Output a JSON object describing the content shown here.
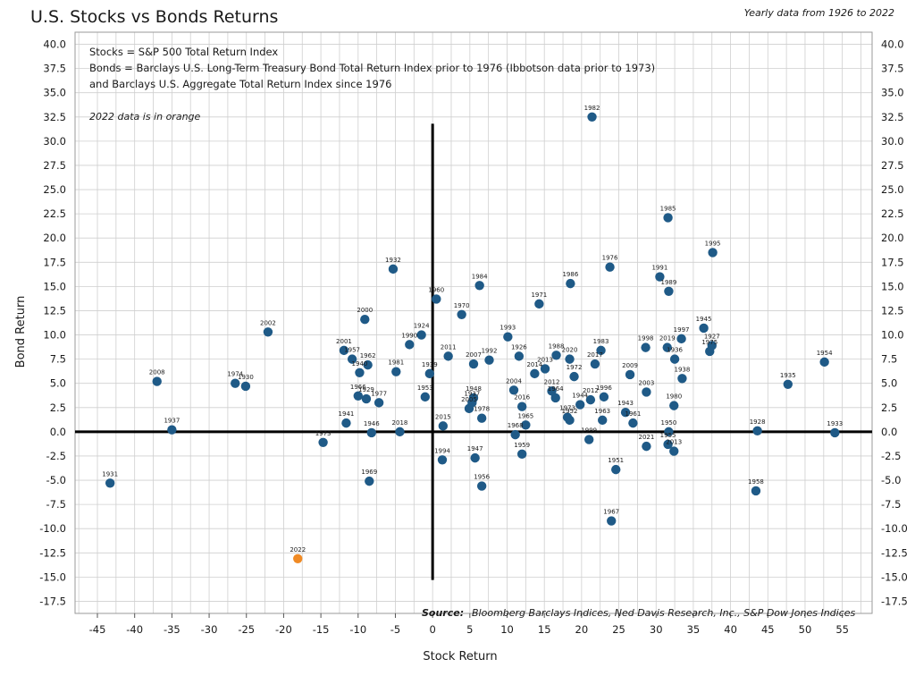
{
  "chart_data": {
    "type": "scatter",
    "title": "U.S. Stocks vs Bonds Returns",
    "subtitle": "Yearly data from 1926 to 2022",
    "xlabel": "Stock Return",
    "ylabel": "Bond Return",
    "xlim": [
      -48,
      59
    ],
    "ylim": [
      -18.75,
      41.25
    ],
    "xticks": [
      -45,
      -40,
      -35,
      -30,
      -25,
      -20,
      -15,
      -10,
      -5,
      0,
      5,
      10,
      15,
      20,
      25,
      30,
      35,
      40,
      45,
      50,
      55
    ],
    "xtick_labels": [
      "-45",
      "-40",
      "-35",
      "-30",
      "-25",
      "-20",
      "-15",
      "-10",
      "-5",
      "0",
      "5",
      "10",
      "15",
      "20",
      "25",
      "30",
      "35",
      "40",
      "45",
      "50",
      "55"
    ],
    "yticks": [
      -17.5,
      -15,
      -12.5,
      -10,
      -7.5,
      -5,
      -2.5,
      0,
      2.5,
      5,
      7.5,
      10,
      12.5,
      15,
      17.5,
      20,
      22.5,
      25,
      27.5,
      30,
      32.5,
      35,
      37.5,
      40
    ],
    "ytick_labels": [
      "-17.5",
      "-15.0",
      "-12.5",
      "-10.0",
      "-7.5",
      "-5.0",
      "-2.5",
      "0.0",
      "2.5",
      "5.0",
      "7.5",
      "10.0",
      "12.5",
      "15.0",
      "17.5",
      "20.0",
      "22.5",
      "25.0",
      "27.5",
      "30.0",
      "32.5",
      "35.0",
      "37.5",
      "40.0"
    ],
    "grid": true,
    "notes": [
      "Stocks = S&P 500 Total Return Index",
      "Bonds = Barclays U.S. Long-Term Treasury Bond Total Return Index prior to 1976 (Ibbotson data prior to 1973)",
      "and Barclays U.S. Aggregate Total Return Index since 1976"
    ],
    "highlight_note": "2022 data is in orange",
    "source_label": "Source:",
    "source_text": "Bloomberg Barclays Indices, Ned Davis Research, Inc., S&P Dow Jones Indices",
    "colors": {
      "point": "#1f5a87",
      "highlight": "#f08a24",
      "grid": "#cfcfcf",
      "axis": "#000000"
    },
    "points": [
      {
        "label": "1982",
        "x": 21.4,
        "y": 32.5
      },
      {
        "label": "1985",
        "x": 31.6,
        "y": 22.1
      },
      {
        "label": "1995",
        "x": 37.6,
        "y": 18.5
      },
      {
        "label": "1976",
        "x": 23.8,
        "y": 17.0
      },
      {
        "label": "1932",
        "x": -5.3,
        "y": 16.8
      },
      {
        "label": "1991",
        "x": 30.5,
        "y": 16.0
      },
      {
        "label": "1986",
        "x": 18.5,
        "y": 15.3
      },
      {
        "label": "1984",
        "x": 6.3,
        "y": 15.1
      },
      {
        "label": "1989",
        "x": 31.7,
        "y": 14.5
      },
      {
        "label": "1960",
        "x": 0.5,
        "y": 13.7
      },
      {
        "label": "1971",
        "x": 14.3,
        "y": 13.2
      },
      {
        "label": "1970",
        "x": 3.9,
        "y": 12.1
      },
      {
        "label": "2000",
        "x": -9.1,
        "y": 11.6
      },
      {
        "label": "1945",
        "x": 36.4,
        "y": 10.7
      },
      {
        "label": "2002",
        "x": -22.1,
        "y": 10.3
      },
      {
        "label": "1924",
        "x": -1.5,
        "y": 10.0
      },
      {
        "label": "1993",
        "x": 10.1,
        "y": 9.8
      },
      {
        "label": "1997",
        "x": 33.4,
        "y": 9.6
      },
      {
        "label": "1998",
        "x": 28.6,
        "y": 8.7
      },
      {
        "label": "2019",
        "x": 31.5,
        "y": 8.7
      },
      {
        "label": "1927",
        "x": 37.5,
        "y": 8.9
      },
      {
        "label": "1975",
        "x": 37.2,
        "y": 8.3
      },
      {
        "label": "1990",
        "x": -3.1,
        "y": 9.0
      },
      {
        "label": "1983",
        "x": 22.6,
        "y": 8.4
      },
      {
        "label": "2001",
        "x": -11.9,
        "y": 8.4
      },
      {
        "label": "1957",
        "x": -10.8,
        "y": 7.5
      },
      {
        "label": "1936",
        "x": 32.5,
        "y": 7.5
      },
      {
        "label": "2011",
        "x": 2.1,
        "y": 7.8
      },
      {
        "label": "1926",
        "x": 11.6,
        "y": 7.8
      },
      {
        "label": "1988",
        "x": 16.6,
        "y": 7.9
      },
      {
        "label": "2020",
        "x": 18.4,
        "y": 7.5
      },
      {
        "label": "1992",
        "x": 7.6,
        "y": 7.4
      },
      {
        "label": "1954",
        "x": 52.6,
        "y": 7.2
      },
      {
        "label": "2007",
        "x": 5.5,
        "y": 7.0
      },
      {
        "label": "2017",
        "x": 21.8,
        "y": 7.0
      },
      {
        "label": "1962",
        "x": -8.7,
        "y": 6.9
      },
      {
        "label": "1940",
        "x": -9.8,
        "y": 6.1
      },
      {
        "label": "2013a",
        "x": 15.1,
        "y": 6.5
      },
      {
        "label": "1981",
        "x": -4.9,
        "y": 6.2
      },
      {
        "label": "1939",
        "x": -0.4,
        "y": 6.0
      },
      {
        "label": "2014",
        "x": 13.7,
        "y": 6.0
      },
      {
        "label": "2009",
        "x": 26.5,
        "y": 5.9
      },
      {
        "label": "1972",
        "x": 19.0,
        "y": 5.7
      },
      {
        "label": "1938",
        "x": 33.5,
        "y": 5.5
      },
      {
        "label": "2008",
        "x": -37.0,
        "y": 5.2
      },
      {
        "label": "1974",
        "x": -26.5,
        "y": 5.0
      },
      {
        "label": "1930",
        "x": -25.1,
        "y": 4.7
      },
      {
        "label": "1935",
        "x": 47.7,
        "y": 4.9
      },
      {
        "label": "2004",
        "x": 10.9,
        "y": 4.3
      },
      {
        "label": "2003",
        "x": 28.7,
        "y": 4.1
      },
      {
        "label": "1966",
        "x": -10.0,
        "y": 3.7
      },
      {
        "label": "1929",
        "x": -8.9,
        "y": 3.4
      },
      {
        "label": "1953",
        "x": -1.0,
        "y": 3.6
      },
      {
        "label": "1948",
        "x": 5.5,
        "y": 3.5
      },
      {
        "label": "1964",
        "x": 16.5,
        "y": 3.5
      },
      {
        "label": "2012",
        "x": 16.0,
        "y": 4.2
      },
      {
        "label": "2012b",
        "x": 21.2,
        "y": 3.3
      },
      {
        "label": "1996",
        "x": 23.0,
        "y": 3.6
      },
      {
        "label": "1937b",
        "x": 5.3,
        "y": 3.0
      },
      {
        "label": "1977",
        "x": -7.2,
        "y": 3.0
      },
      {
        "label": "1944",
        "x": 19.8,
        "y": 2.8
      },
      {
        "label": "2016",
        "x": 12.0,
        "y": 2.6
      },
      {
        "label": "1980",
        "x": 32.4,
        "y": 2.7
      },
      {
        "label": "2005",
        "x": 4.9,
        "y": 2.4
      },
      {
        "label": "1943",
        "x": 25.9,
        "y": 2.0
      },
      {
        "label": "1978",
        "x": 6.6,
        "y": 1.4
      },
      {
        "label": "1952",
        "x": 18.4,
        "y": 1.2
      },
      {
        "label": "1963",
        "x": 22.8,
        "y": 1.2
      },
      {
        "label": "1973b",
        "x": 18.1,
        "y": 1.5
      },
      {
        "label": "1961",
        "x": 26.9,
        "y": 0.9
      },
      {
        "label": "1941",
        "x": -11.6,
        "y": 0.9
      },
      {
        "label": "1965",
        "x": 12.5,
        "y": 0.7
      },
      {
        "label": "2015",
        "x": 1.4,
        "y": 0.6
      },
      {
        "label": "1937",
        "x": -35.0,
        "y": 0.2
      },
      {
        "label": "1946",
        "x": -8.2,
        "y": -0.1
      },
      {
        "label": "2018",
        "x": -4.4,
        "y": 0.0
      },
      {
        "label": "1928",
        "x": 43.6,
        "y": 0.1
      },
      {
        "label": "1933",
        "x": 54.0,
        "y": -0.1
      },
      {
        "label": "1950",
        "x": 31.7,
        "y": 0.0
      },
      {
        "label": "1968",
        "x": 11.1,
        "y": -0.3
      },
      {
        "label": "1999",
        "x": 21.0,
        "y": -0.8
      },
      {
        "label": "1973",
        "x": -14.7,
        "y": -1.1
      },
      {
        "label": "2021",
        "x": 28.7,
        "y": -1.5
      },
      {
        "label": "1955",
        "x": 31.6,
        "y": -1.3
      },
      {
        "label": "2013",
        "x": 32.4,
        "y": -2.0
      },
      {
        "label": "1959",
        "x": 12.0,
        "y": -2.3
      },
      {
        "label": "1947",
        "x": 5.7,
        "y": -2.7
      },
      {
        "label": "1994",
        "x": 1.3,
        "y": -2.9
      },
      {
        "label": "1951",
        "x": 24.6,
        "y": -3.9
      },
      {
        "label": "1969",
        "x": -8.5,
        "y": -5.1
      },
      {
        "label": "1931",
        "x": -43.3,
        "y": -5.3
      },
      {
        "label": "1956",
        "x": 6.6,
        "y": -5.6
      },
      {
        "label": "1958",
        "x": 43.4,
        "y": -6.1
      },
      {
        "label": "1967",
        "x": 24.0,
        "y": -9.2
      },
      {
        "label": "2022",
        "x": -18.1,
        "y": -13.1,
        "highlight": true
      }
    ],
    "point_labels": [
      {
        "text": "1982",
        "x": 21.4,
        "y": 32.5
      },
      {
        "text": "1985",
        "x": 31.6,
        "y": 22.1
      },
      {
        "text": "1995",
        "x": 37.6,
        "y": 18.5
      },
      {
        "text": "1976",
        "x": 23.8,
        "y": 17.0
      },
      {
        "text": "1932",
        "x": -5.3,
        "y": 16.8
      },
      {
        "text": "1991",
        "x": 30.5,
        "y": 16.0
      },
      {
        "text": "1986",
        "x": 18.5,
        "y": 15.3
      },
      {
        "text": "1984",
        "x": 6.3,
        "y": 15.1
      },
      {
        "text": "1989",
        "x": 31.7,
        "y": 14.5
      },
      {
        "text": "1960",
        "x": 0.5,
        "y": 13.7
      },
      {
        "text": "1971",
        "x": 14.3,
        "y": 13.2
      },
      {
        "text": "1970",
        "x": 3.9,
        "y": 12.1
      },
      {
        "text": "2000",
        "x": -9.1,
        "y": 11.6
      },
      {
        "text": "1945",
        "x": 36.4,
        "y": 10.7
      },
      {
        "text": "2002",
        "x": -22.1,
        "y": 10.3
      },
      {
        "text": "1924",
        "x": -1.5,
        "y": 10.0
      },
      {
        "text": "1993",
        "x": 10.1,
        "y": 9.8
      },
      {
        "text": "1997",
        "x": 33.4,
        "y": 9.6
      },
      {
        "text": "1998",
        "x": 28.6,
        "y": 8.7
      },
      {
        "text": "2019",
        "x": 31.5,
        "y": 8.7
      },
      {
        "text": "1927",
        "x": 37.5,
        "y": 8.9
      },
      {
        "text": "1975",
        "x": 37.2,
        "y": 8.3
      },
      {
        "text": "1990",
        "x": -3.1,
        "y": 9.0
      },
      {
        "text": "1983",
        "x": 22.6,
        "y": 8.4
      },
      {
        "text": "2001",
        "x": -11.9,
        "y": 8.4
      },
      {
        "text": "1957",
        "x": -10.8,
        "y": 7.5
      },
      {
        "text": "1936",
        "x": 32.5,
        "y": 7.5
      },
      {
        "text": "2011",
        "x": 2.1,
        "y": 7.8
      },
      {
        "text": "1926",
        "x": 11.6,
        "y": 7.8
      },
      {
        "text": "1988",
        "x": 16.6,
        "y": 7.9
      },
      {
        "text": "2020",
        "x": 18.4,
        "y": 7.5
      },
      {
        "text": "1992",
        "x": 7.6,
        "y": 7.4
      },
      {
        "text": "1954",
        "x": 52.6,
        "y": 7.2
      },
      {
        "text": "2007",
        "x": 5.5,
        "y": 7.0
      },
      {
        "text": "2017",
        "x": 21.8,
        "y": 7.0
      },
      {
        "text": "1962",
        "x": -8.7,
        "y": 6.9
      },
      {
        "text": "1940",
        "x": -9.8,
        "y": 6.1
      },
      {
        "text": "2013",
        "x": 15.1,
        "y": 6.5
      },
      {
        "text": "1981",
        "x": -4.9,
        "y": 6.2
      },
      {
        "text": "1939",
        "x": -0.4,
        "y": 6.0
      },
      {
        "text": "2014",
        "x": 13.7,
        "y": 6.0
      },
      {
        "text": "2009",
        "x": 26.5,
        "y": 5.9
      },
      {
        "text": "1972",
        "x": 19.0,
        "y": 5.7
      },
      {
        "text": "1938",
        "x": 33.5,
        "y": 5.5
      },
      {
        "text": "2008",
        "x": -37.0,
        "y": 5.2
      },
      {
        "text": "1974",
        "x": -26.5,
        "y": 5.0
      },
      {
        "text": "1930",
        "x": -25.1,
        "y": 4.7
      },
      {
        "text": "1935",
        "x": 47.7,
        "y": 4.9
      },
      {
        "text": "2004",
        "x": 10.9,
        "y": 4.3
      },
      {
        "text": "2003",
        "x": 28.7,
        "y": 4.1
      },
      {
        "text": "1966",
        "x": -10.0,
        "y": 3.7
      },
      {
        "text": "1929",
        "x": -8.9,
        "y": 3.4
      },
      {
        "text": "1953",
        "x": -1.0,
        "y": 3.6
      },
      {
        "text": "1948",
        "x": 5.5,
        "y": 3.5
      },
      {
        "text": "1964",
        "x": 16.5,
        "y": 3.5
      },
      {
        "text": "2012",
        "x": 16.0,
        "y": 4.2
      },
      {
        "text": "2012",
        "x": 21.2,
        "y": 3.3
      },
      {
        "text": "1996",
        "x": 23.0,
        "y": 3.6
      },
      {
        "text": "1937",
        "x": 5.3,
        "y": 3.0
      },
      {
        "text": "1977",
        "x": -7.2,
        "y": 3.0
      },
      {
        "text": "1944",
        "x": 19.8,
        "y": 2.8
      },
      {
        "text": "2016",
        "x": 12.0,
        "y": 2.6
      },
      {
        "text": "1980",
        "x": 32.4,
        "y": 2.7
      },
      {
        "text": "2005",
        "x": 4.9,
        "y": 2.4
      },
      {
        "text": "1943",
        "x": 25.9,
        "y": 2.0
      },
      {
        "text": "1978",
        "x": 6.6,
        "y": 1.4
      },
      {
        "text": "1952",
        "x": 18.4,
        "y": 1.2
      },
      {
        "text": "1963",
        "x": 22.8,
        "y": 1.2
      },
      {
        "text": "1973",
        "x": 18.1,
        "y": 1.5
      },
      {
        "text": "1961",
        "x": 26.9,
        "y": 0.9
      },
      {
        "text": "1941",
        "x": -11.6,
        "y": 0.9
      },
      {
        "text": "1965",
        "x": 12.5,
        "y": 0.7
      },
      {
        "text": "2015",
        "x": 1.4,
        "y": 0.6
      },
      {
        "text": "1937",
        "x": -35.0,
        "y": 0.2
      },
      {
        "text": "1946",
        "x": -8.2,
        "y": -0.1
      },
      {
        "text": "2018",
        "x": -4.4,
        "y": 0.0
      },
      {
        "text": "1928",
        "x": 43.6,
        "y": 0.1
      },
      {
        "text": "1933",
        "x": 54.0,
        "y": -0.1
      },
      {
        "text": "1950",
        "x": 31.7,
        "y": 0.0
      },
      {
        "text": "1968",
        "x": 11.1,
        "y": -0.3
      },
      {
        "text": "1999",
        "x": 21.0,
        "y": -0.8
      },
      {
        "text": "1973",
        "x": -14.7,
        "y": -1.1
      },
      {
        "text": "2021",
        "x": 28.7,
        "y": -1.5
      },
      {
        "text": "1955",
        "x": 31.6,
        "y": -1.3
      },
      {
        "text": "2013",
        "x": 32.4,
        "y": -2.0
      },
      {
        "text": "1959",
        "x": 12.0,
        "y": -2.3
      },
      {
        "text": "1947",
        "x": 5.7,
        "y": -2.7
      },
      {
        "text": "1994",
        "x": 1.3,
        "y": -2.9
      },
      {
        "text": "1951",
        "x": 24.6,
        "y": -3.9
      },
      {
        "text": "1969",
        "x": -8.5,
        "y": -5.1
      },
      {
        "text": "1931",
        "x": -43.3,
        "y": -5.3
      },
      {
        "text": "1956",
        "x": 6.6,
        "y": -5.6
      },
      {
        "text": "1958",
        "x": 43.4,
        "y": -6.1
      },
      {
        "text": "1967",
        "x": 24.0,
        "y": -9.2
      },
      {
        "text": "2022",
        "x": -18.1,
        "y": -13.1
      }
    ]
  }
}
